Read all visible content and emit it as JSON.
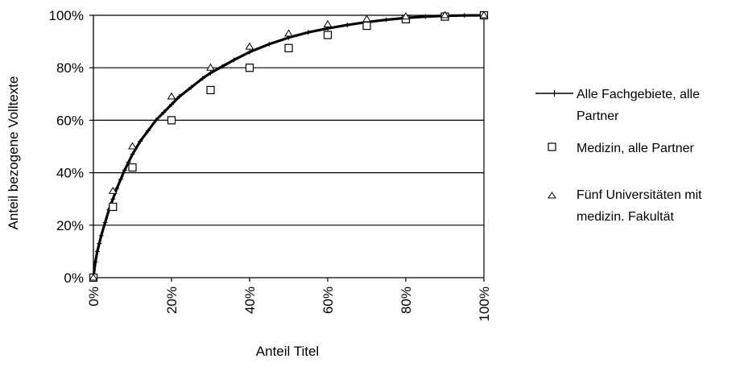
{
  "chart_data": {
    "type": "scatter",
    "title": "",
    "xlabel": "Anteil Titel",
    "ylabel": "Anteil bezogene Volltexte",
    "xlim": [
      0,
      100
    ],
    "ylim": [
      0,
      100
    ],
    "x_ticks": [
      "0%",
      "20%",
      "40%",
      "60%",
      "80%",
      "100%"
    ],
    "y_ticks": [
      "0%",
      "20%",
      "40%",
      "60%",
      "80%",
      "100%"
    ],
    "grid": "horizontal",
    "legend_position": "right",
    "series": [
      {
        "name": "Alle Fachgebiete, alle Partner",
        "marker": "plus-line",
        "x": [
          0,
          0.5,
          1,
          1.5,
          2,
          3,
          4,
          5,
          6,
          7,
          8,
          9,
          10,
          12,
          14,
          16,
          18,
          20,
          22,
          25,
          28,
          30,
          33,
          36,
          40,
          45,
          50,
          55,
          60,
          65,
          70,
          75,
          80,
          85,
          90,
          95,
          100
        ],
        "y": [
          0,
          6,
          10,
          13,
          16,
          21,
          26,
          30,
          34,
          37.5,
          41,
          44,
          47,
          52,
          56,
          60,
          63,
          66,
          69,
          72.5,
          76,
          78,
          80.5,
          83,
          86,
          89,
          91.5,
          93.5,
          95,
          96.3,
          97.4,
          98.3,
          99,
          99.5,
          99.8,
          99.95,
          100
        ]
      },
      {
        "name": "Medizin, alle Partner",
        "marker": "square",
        "x": [
          0,
          5,
          10,
          20,
          30,
          40,
          50,
          60,
          70,
          80,
          90,
          100
        ],
        "y": [
          0,
          27,
          42,
          60,
          71.5,
          80,
          87.5,
          92.5,
          96,
          98.5,
          99.5,
          100
        ]
      },
      {
        "name": "Fünf Universitäten mit medizin. Fakultät",
        "marker": "triangle",
        "x": [
          0,
          5,
          10,
          20,
          30,
          40,
          50,
          60,
          70,
          80,
          90,
          100
        ],
        "y": [
          0,
          33,
          50,
          69,
          80,
          88,
          93,
          96.5,
          98.5,
          99.5,
          100,
          100
        ]
      }
    ],
    "legend": [
      {
        "lines": [
          "Alle Fachgebiete, alle",
          "Partner"
        ]
      },
      {
        "lines": [
          "Medizin, alle Partner"
        ]
      },
      {
        "lines": [
          "Fünf Universitäten mit",
          "medizin. Fakultät"
        ]
      }
    ]
  },
  "colors": {
    "axis": "#000000",
    "grid": "#000000",
    "series_line": "#000000",
    "marker": "#000000"
  }
}
